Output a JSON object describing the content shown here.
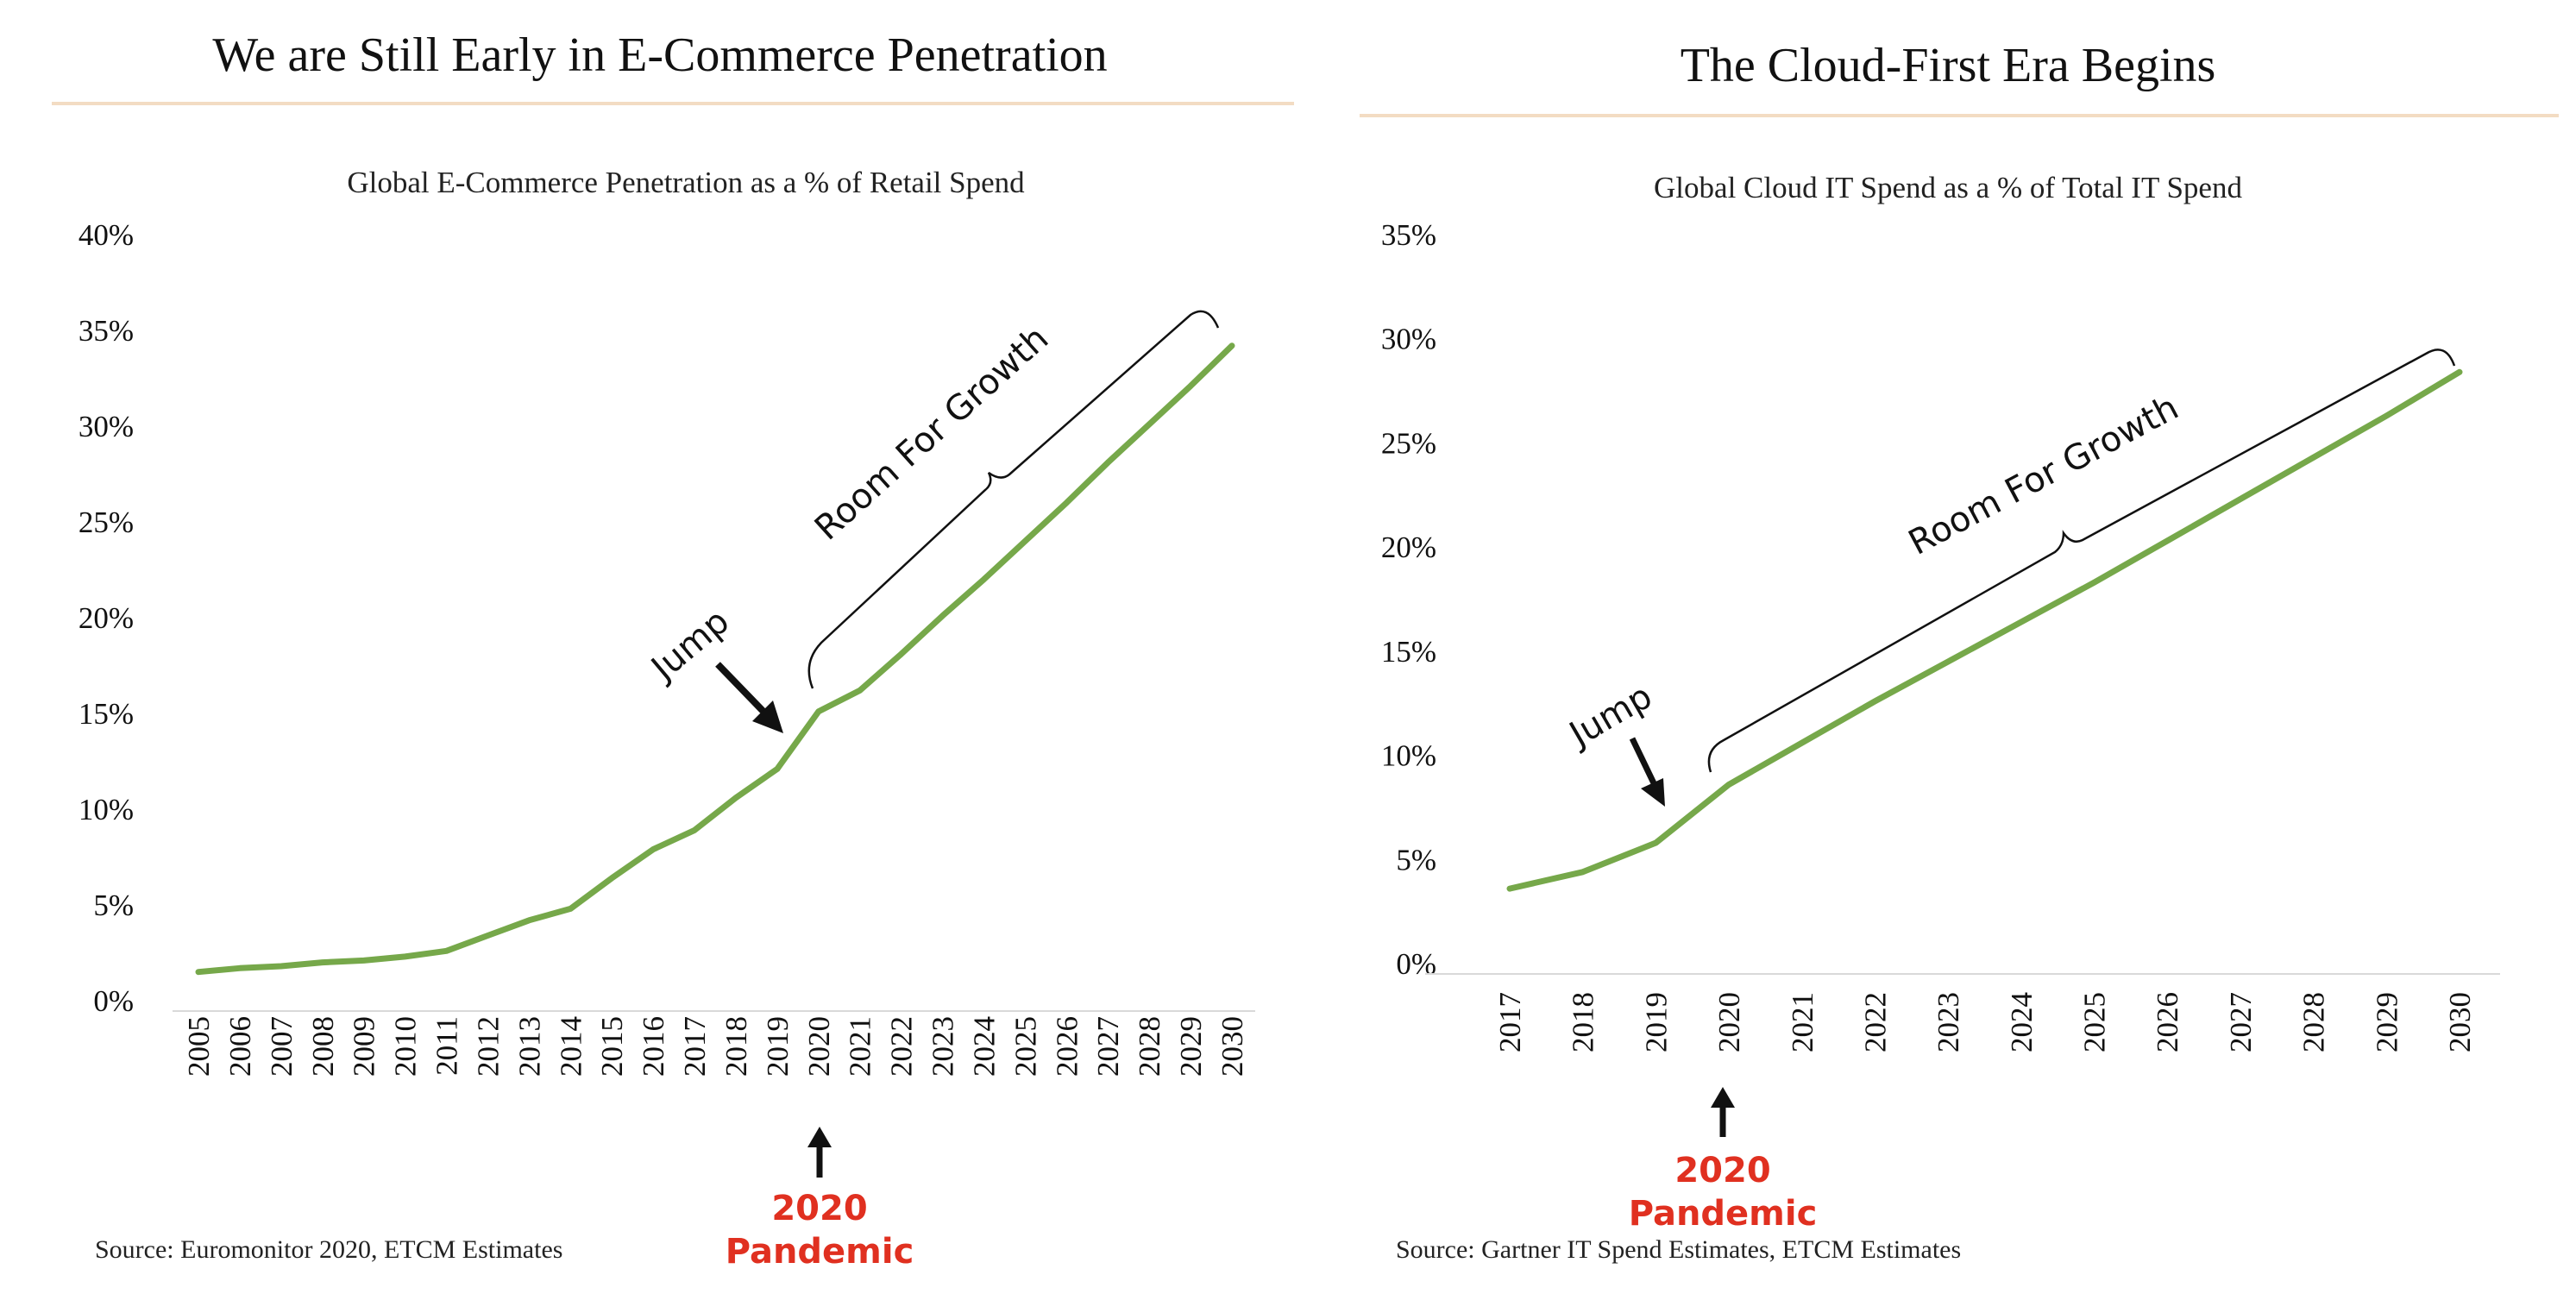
{
  "colors": {
    "line": "#76a84a",
    "title_rule": "#f3dcc3",
    "pandemic_text": "#e03020",
    "axis": "#d9d9d9"
  },
  "chart_data": [
    {
      "type": "line",
      "panel_title": "We are Still Early in E-Commerce Penetration",
      "title": "Global E-Commerce Penetration as a % of Retail Spend",
      "xlabel": "",
      "ylabel": "",
      "ylim": [
        0,
        40
      ],
      "yticks": [
        "0%",
        "5%",
        "10%",
        "15%",
        "20%",
        "25%",
        "30%",
        "35%",
        "40%"
      ],
      "x": [
        "2005",
        "2006",
        "2007",
        "2008",
        "2009",
        "2010",
        "2011",
        "2012",
        "2013",
        "2014",
        "2015",
        "2016",
        "2017",
        "2018",
        "2019",
        "2020",
        "2021",
        "2022",
        "2023",
        "2024",
        "2025",
        "2026",
        "2027",
        "2028",
        "2029",
        "2030"
      ],
      "values": [
        1.5,
        1.7,
        1.8,
        2.0,
        2.1,
        2.3,
        2.6,
        3.4,
        4.2,
        4.8,
        6.4,
        7.9,
        8.9,
        10.6,
        12.1,
        15.1,
        16.2,
        18.1,
        20.1,
        22.0,
        24.0,
        26.0,
        28.1,
        30.1,
        32.1,
        34.2
      ],
      "grid": false,
      "annotations": {
        "jump": "Jump",
        "room": "Room For Growth",
        "pandemic_line1": "2020",
        "pandemic_line2": "Pandemic"
      },
      "source": "Source: Euromonitor 2020, ETCM Estimates"
    },
    {
      "type": "line",
      "panel_title": "The Cloud-First Era Begins",
      "title": "Global Cloud IT Spend as a % of Total IT Spend",
      "xlabel": "",
      "ylabel": "",
      "ylim": [
        0,
        35
      ],
      "yticks": [
        "0%",
        "5%",
        "10%",
        "15%",
        "20%",
        "25%",
        "30%",
        "35%"
      ],
      "x": [
        "2017",
        "2018",
        "2019",
        "2020",
        "2021",
        "2022",
        "2023",
        "2024",
        "2025",
        "2026",
        "2027",
        "2028",
        "2029",
        "2030"
      ],
      "values": [
        3.6,
        4.4,
        5.8,
        8.6,
        10.6,
        12.6,
        14.5,
        16.4,
        18.3,
        20.3,
        22.3,
        24.3,
        26.3,
        28.4
      ],
      "grid": false,
      "annotations": {
        "jump": "Jump",
        "room": "Room For Growth",
        "pandemic_line1": "2020",
        "pandemic_line2": "Pandemic"
      },
      "source": "Source: Gartner IT Spend Estimates, ETCM Estimates"
    }
  ]
}
